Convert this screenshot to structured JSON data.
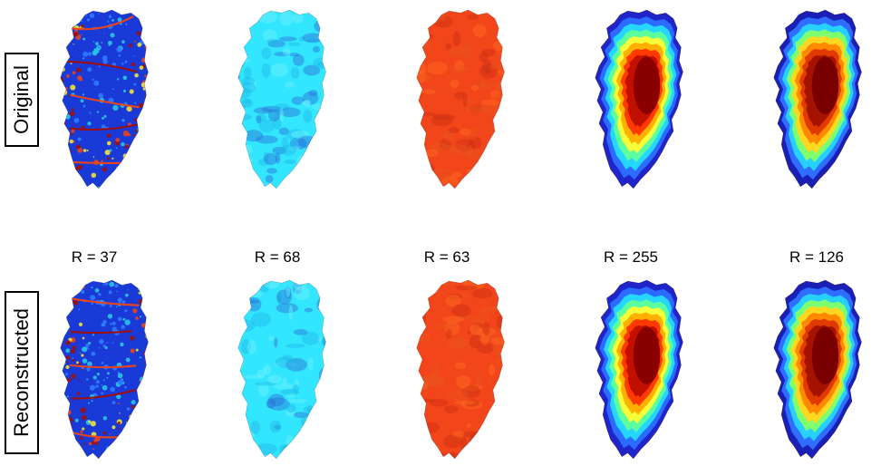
{
  "rows": [
    {
      "label": "Original"
    },
    {
      "label": "Reconstructed"
    }
  ],
  "r_labels": [
    "R = 37",
    "R = 68",
    "R = 63",
    "R = 255",
    "R = 126"
  ],
  "panels": [
    {
      "name": "velocity-like",
      "style": "jet-speckle",
      "base": "#1a3ad8",
      "accent": [
        "#2e7bff",
        "#29c8e6",
        "#f3e23a",
        "#e8451c",
        "#9b0f0f"
      ]
    },
    {
      "name": "cyan-field",
      "style": "flat",
      "base": "#33e6ff",
      "accent": [
        "#6ef2ff",
        "#1fb7e6",
        "#2a6fd6"
      ]
    },
    {
      "name": "red-field",
      "style": "flat",
      "base": "#f2451a",
      "accent": [
        "#ff6a1f",
        "#c92f12",
        "#e8551c"
      ]
    },
    {
      "name": "thickness-like",
      "style": "radial",
      "base": "#8a0000",
      "accent": [
        "#c21000",
        "#ff3a00",
        "#ffb000",
        "#f6ff3a",
        "#5bff9d",
        "#25d6ff",
        "#2b6bff",
        "#1f25c9"
      ]
    },
    {
      "name": "depth-like",
      "style": "radial-blue",
      "base": "#7a0000",
      "accent": [
        "#a51200",
        "#e13a00",
        "#ff8a00",
        "#ffd81f",
        "#7dff70",
        "#27d1ff",
        "#2f6dff",
        "#1a1fb6"
      ]
    }
  ]
}
